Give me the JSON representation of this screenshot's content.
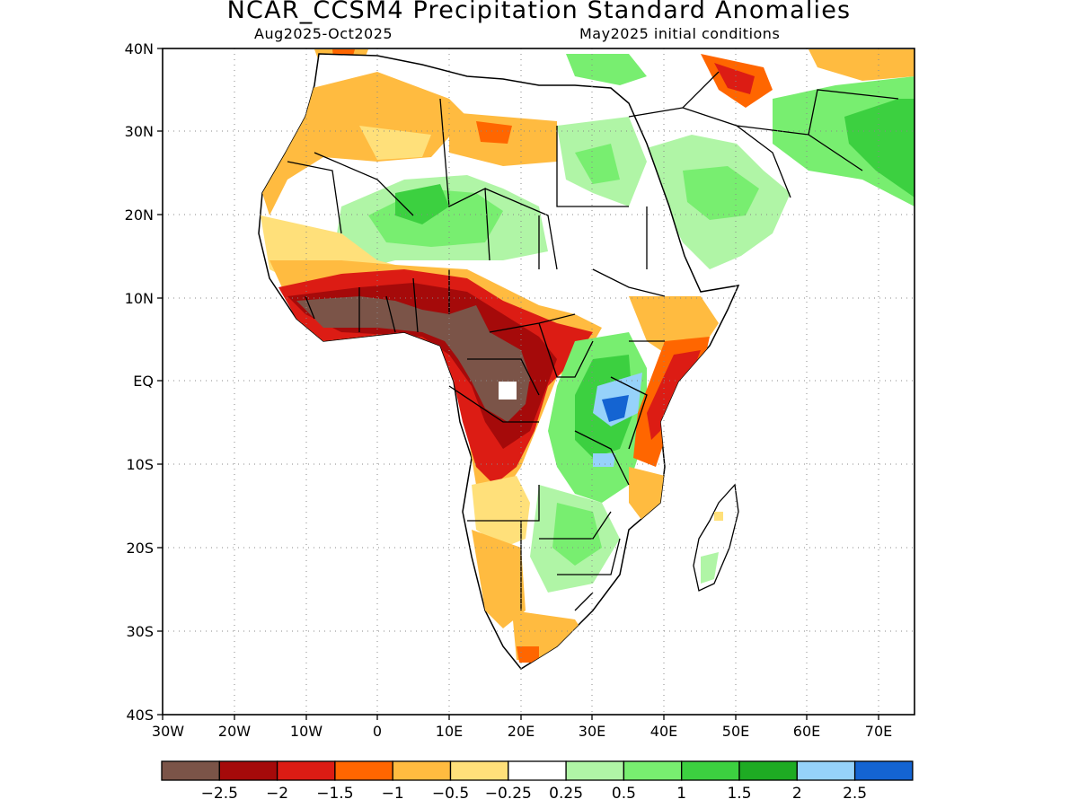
{
  "title": "NCAR_CCSM4 Precipitation Standard Anomalies",
  "subtitle_left": "Aug2025-Oct2025",
  "subtitle_right": "May2025 initial conditions",
  "map": {
    "lon_range": [
      -30,
      75
    ],
    "lat_range": [
      -40,
      40
    ],
    "lat_ticks": [
      "40N",
      "30N",
      "20N",
      "10N",
      "EQ",
      "10S",
      "20S",
      "30S",
      "40S"
    ],
    "lon_ticks": [
      "30W",
      "20W",
      "10W",
      "0",
      "10E",
      "20E",
      "30E",
      "40E",
      "50E",
      "60E",
      "70E"
    ],
    "gridlines": true
  },
  "colorbar": {
    "colors": [
      "#7b5448",
      "#a50a0a",
      "#dc1c14",
      "#ff6600",
      "#ffbb40",
      "#ffe07a",
      "#ffffff",
      "#b0f5a6",
      "#78ee70",
      "#3cd040",
      "#1eab23",
      "#96d2fa",
      "#1464d2"
    ],
    "labels": [
      "-2.5",
      "-2",
      "-1.5",
      "-1",
      "-0.5",
      "-0.25",
      "0.25",
      "0.5",
      "1",
      "1.5",
      "2",
      "2.5"
    ]
  }
}
